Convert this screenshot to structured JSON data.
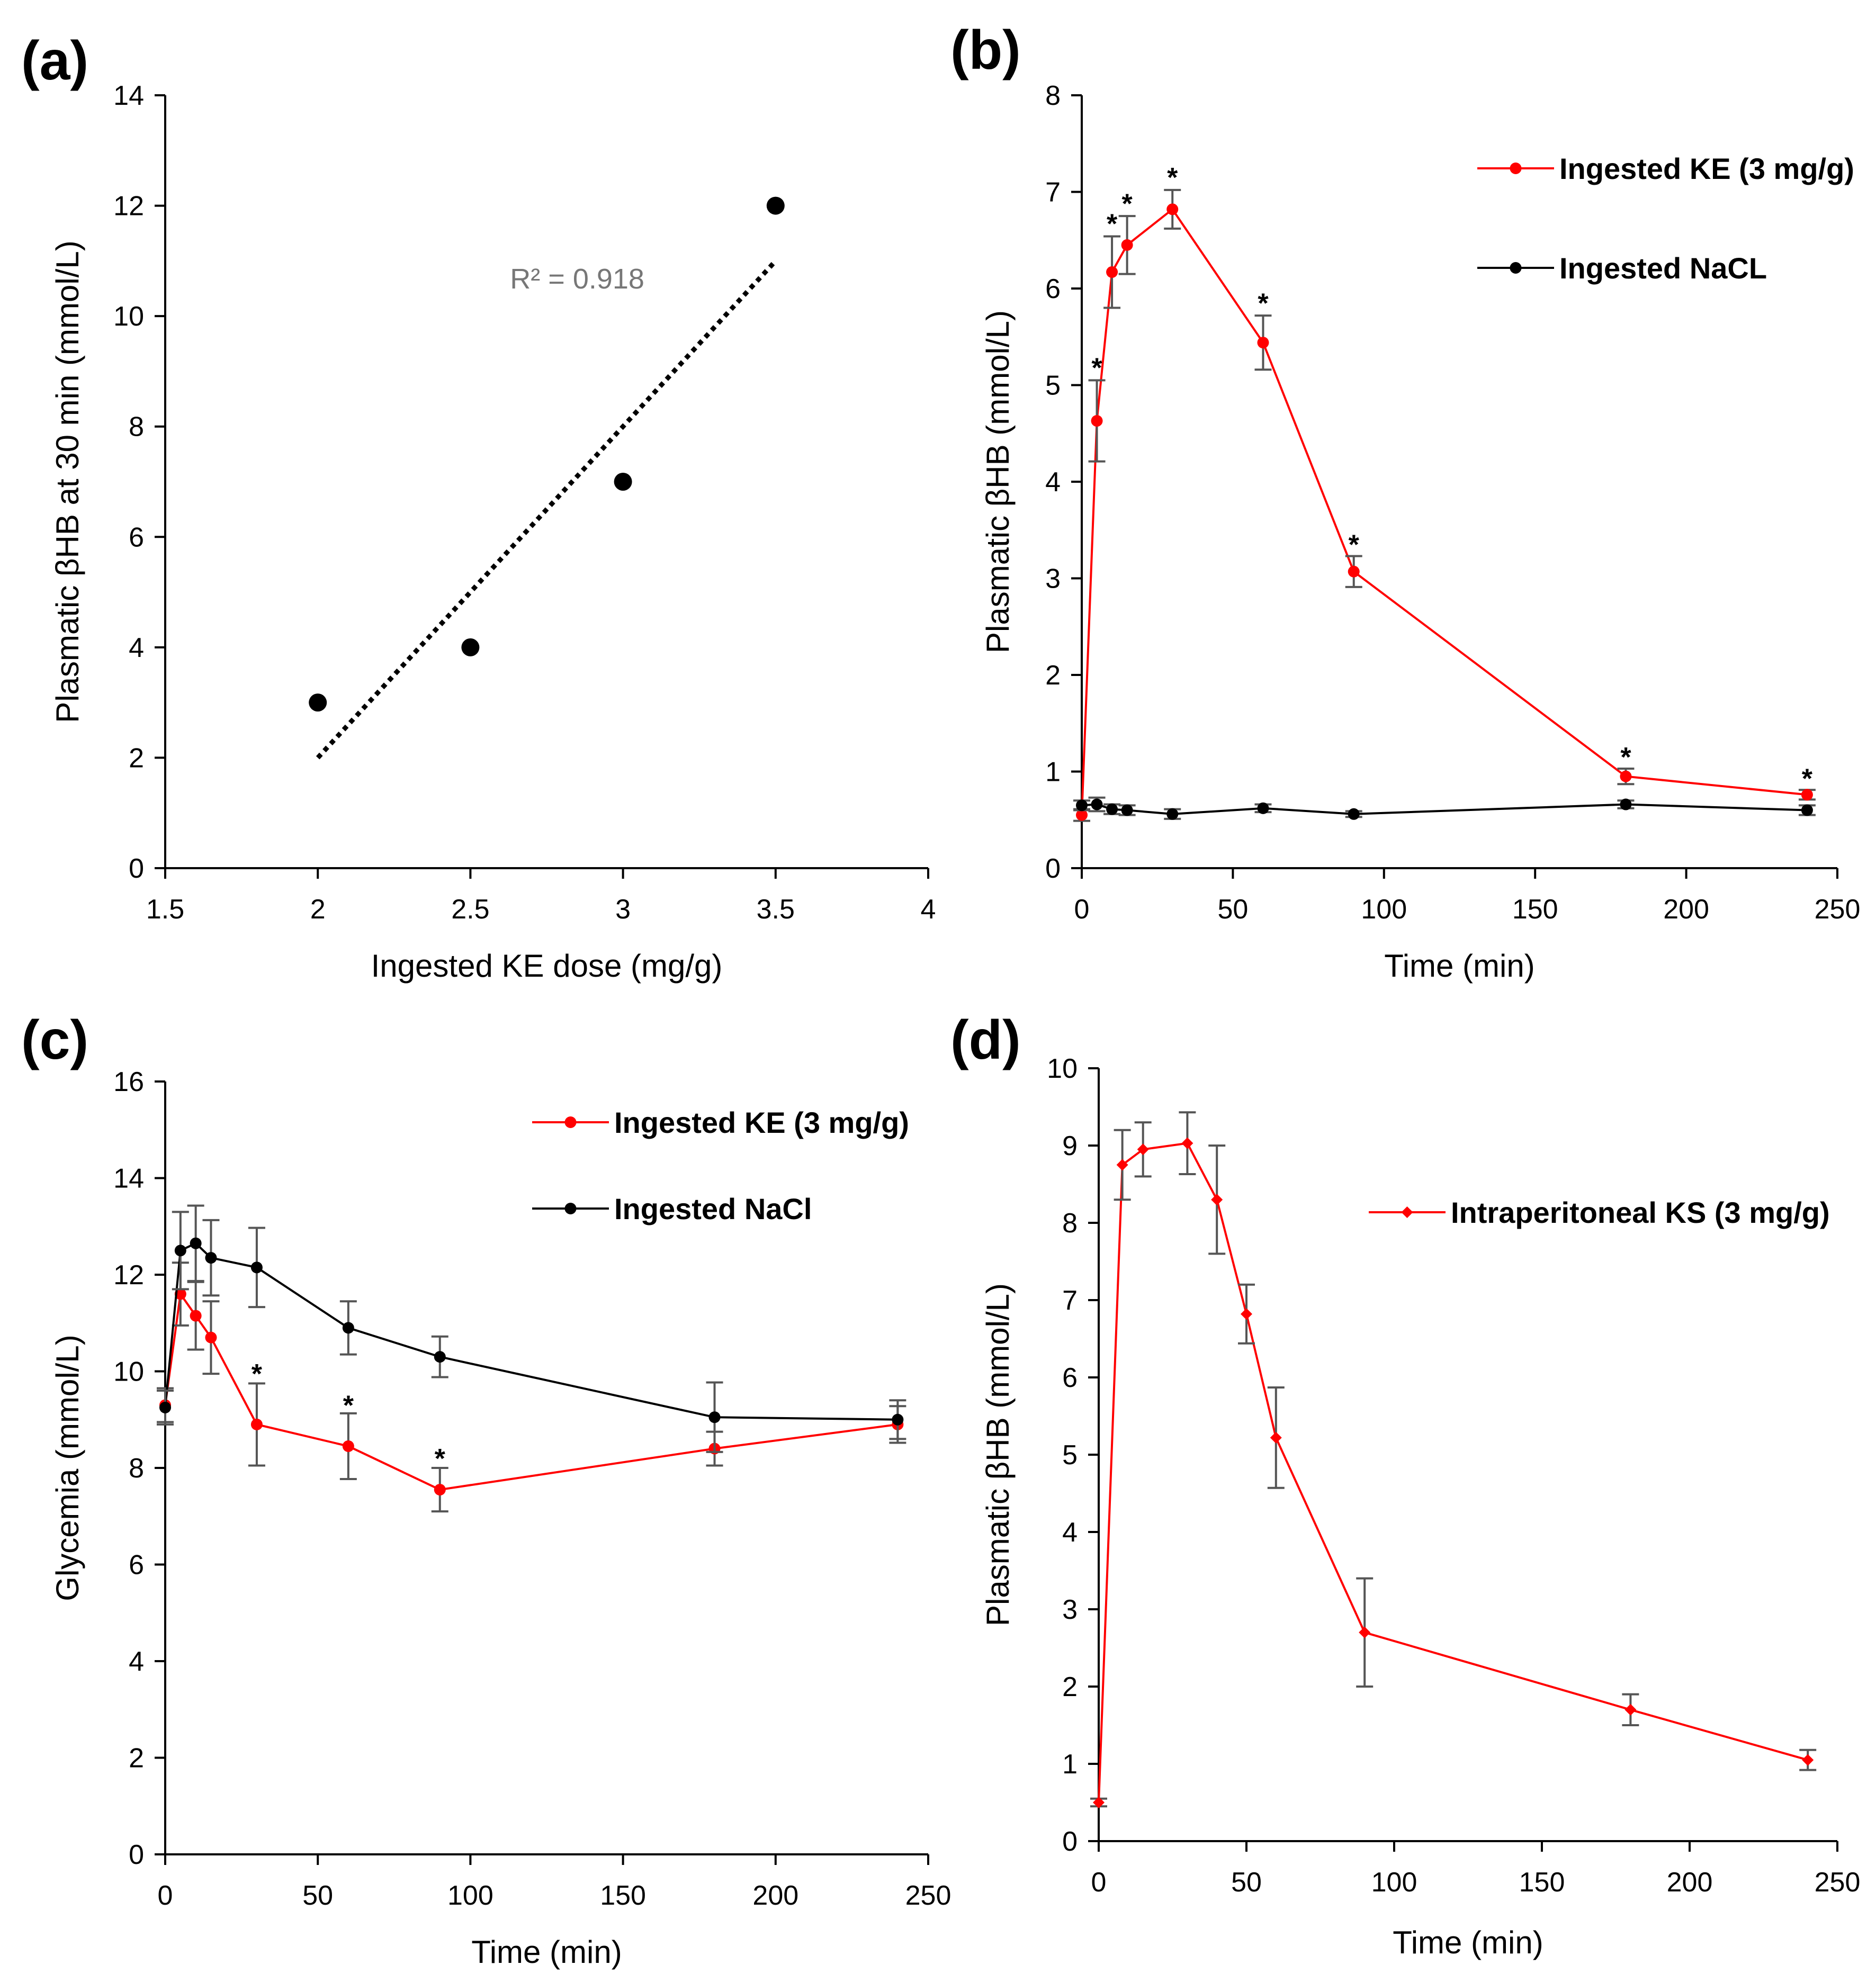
{
  "chart_data": [
    {
      "type": "scatter",
      "panel": "(a)",
      "xlabel": "Ingested KE dose (mg/g)",
      "ylabel": "Plasmatic βHB at 30 min (mmol/L)",
      "xlim": [
        1.5,
        4
      ],
      "ylim": [
        0,
        14
      ],
      "xticks": [
        "1.5",
        "2",
        "2.5",
        "3",
        "3.5",
        "4"
      ],
      "yticks": [
        "0",
        "2",
        "4",
        "6",
        "8",
        "10",
        "12",
        "14"
      ],
      "grid": false,
      "series": [
        {
          "name": "Plasmatic βHB",
          "x": [
            2,
            2.5,
            3,
            3.5
          ],
          "y": [
            3,
            4,
            7,
            12
          ],
          "color": "#000000"
        }
      ],
      "trendline": {
        "x": [
          2,
          3.5
        ],
        "y": [
          2,
          11
        ],
        "style": "dotted",
        "color": "#000000"
      },
      "annotation": {
        "text": "R² = 0.918",
        "x": 2.85,
        "y": 10.5
      }
    },
    {
      "type": "line",
      "panel": "(b)",
      "xlabel": "Time (min)",
      "ylabel": "Plasmatic βHB (mmol/L)",
      "xlim": [
        0,
        250
      ],
      "ylim": [
        0,
        8
      ],
      "xticks": [
        "0",
        "50",
        "100",
        "150",
        "200",
        "250"
      ],
      "yticks": [
        "0",
        "1",
        "2",
        "3",
        "4",
        "5",
        "6",
        "7",
        "8"
      ],
      "grid": false,
      "legend_position": "top-right",
      "series": [
        {
          "name": "Ingested KE (3 mg/g)",
          "color": "#ff0000",
          "x": [
            0,
            5,
            10,
            15,
            30,
            60,
            90,
            180,
            240
          ],
          "y": [
            0.55,
            4.63,
            6.17,
            6.45,
            6.82,
            5.44,
            3.07,
            0.95,
            0.76
          ],
          "err": [
            0.06,
            0.42,
            0.37,
            0.3,
            0.2,
            0.28,
            0.16,
            0.08,
            0.05
          ]
        },
        {
          "name": "Ingested NaCL",
          "color": "#000000",
          "x": [
            0,
            5,
            10,
            15,
            30,
            60,
            90,
            180,
            240
          ],
          "y": [
            0.65,
            0.66,
            0.61,
            0.6,
            0.56,
            0.62,
            0.56,
            0.66,
            0.6
          ],
          "err": [
            0.05,
            0.07,
            0.05,
            0.05,
            0.05,
            0.04,
            0.03,
            0.04,
            0.05
          ]
        }
      ],
      "significance": [
        {
          "text": "*",
          "x": 5,
          "y": 5.18
        },
        {
          "text": "*",
          "x": 10,
          "y": 6.67
        },
        {
          "text": "*",
          "x": 15,
          "y": 6.88
        },
        {
          "text": "*",
          "x": 30,
          "y": 7.15
        },
        {
          "text": "*",
          "x": 60,
          "y": 5.85
        },
        {
          "text": "*",
          "x": 90,
          "y": 3.35
        },
        {
          "text": "*",
          "x": 180,
          "y": 1.15
        },
        {
          "text": "*",
          "x": 240,
          "y": 0.93
        }
      ]
    },
    {
      "type": "line",
      "panel": "(c)",
      "xlabel": "Time (min)",
      "ylabel": "Glycemia (mmol/L)",
      "xlim": [
        0,
        250
      ],
      "ylim": [
        0,
        16
      ],
      "xticks": [
        "0",
        "50",
        "100",
        "150",
        "200",
        "250"
      ],
      "yticks": [
        "0",
        "2",
        "4",
        "6",
        "8",
        "10",
        "12",
        "14",
        "16"
      ],
      "grid": false,
      "legend_position": "top-right",
      "series": [
        {
          "name": "Ingested KE (3 mg/g)",
          "color": "#ff0000",
          "x": [
            0,
            5,
            10,
            15,
            30,
            60,
            90,
            180,
            240
          ],
          "y": [
            9.3,
            11.6,
            11.15,
            10.7,
            8.9,
            8.45,
            7.55,
            8.4,
            8.9
          ],
          "err": [
            0.35,
            0.65,
            0.7,
            0.75,
            0.85,
            0.68,
            0.45,
            0.35,
            0.38
          ]
        },
        {
          "name": "Ingested NaCl",
          "color": "#000000",
          "x": [
            0,
            5,
            10,
            15,
            30,
            60,
            90,
            180,
            240
          ],
          "y": [
            9.25,
            12.5,
            12.65,
            12.35,
            12.15,
            10.9,
            10.3,
            9.05,
            9.0
          ],
          "err": [
            0.35,
            0.8,
            0.78,
            0.78,
            0.82,
            0.55,
            0.42,
            0.72,
            0.4
          ]
        }
      ],
      "significance": [
        {
          "text": "*",
          "x": 30,
          "y": 9.95
        },
        {
          "text": "*",
          "x": 60,
          "y": 9.3
        },
        {
          "text": "*",
          "x": 90,
          "y": 8.2
        }
      ]
    },
    {
      "type": "line",
      "panel": "(d)",
      "xlabel": "Time (min)",
      "ylabel": "Plasmatic βHB (mmol/L)",
      "xlim": [
        0,
        250
      ],
      "ylim": [
        0,
        10
      ],
      "xticks": [
        "0",
        "50",
        "100",
        "150",
        "200",
        "250"
      ],
      "yticks": [
        "0",
        "1",
        "2",
        "3",
        "4",
        "5",
        "6",
        "7",
        "8",
        "9",
        "10"
      ],
      "grid": false,
      "legend_position": "top-right",
      "series": [
        {
          "name": "Intraperitoneal KS (3 mg/g)",
          "color": "#ff0000",
          "x": [
            0,
            8,
            15,
            30,
            40,
            50,
            60,
            90,
            180,
            240
          ],
          "y": [
            0.5,
            8.75,
            8.95,
            9.03,
            8.3,
            6.82,
            5.22,
            2.7,
            1.7,
            1.05
          ],
          "err": [
            0.05,
            0.45,
            0.35,
            0.4,
            0.7,
            0.38,
            0.65,
            0.7,
            0.2,
            0.13
          ]
        }
      ]
    }
  ]
}
